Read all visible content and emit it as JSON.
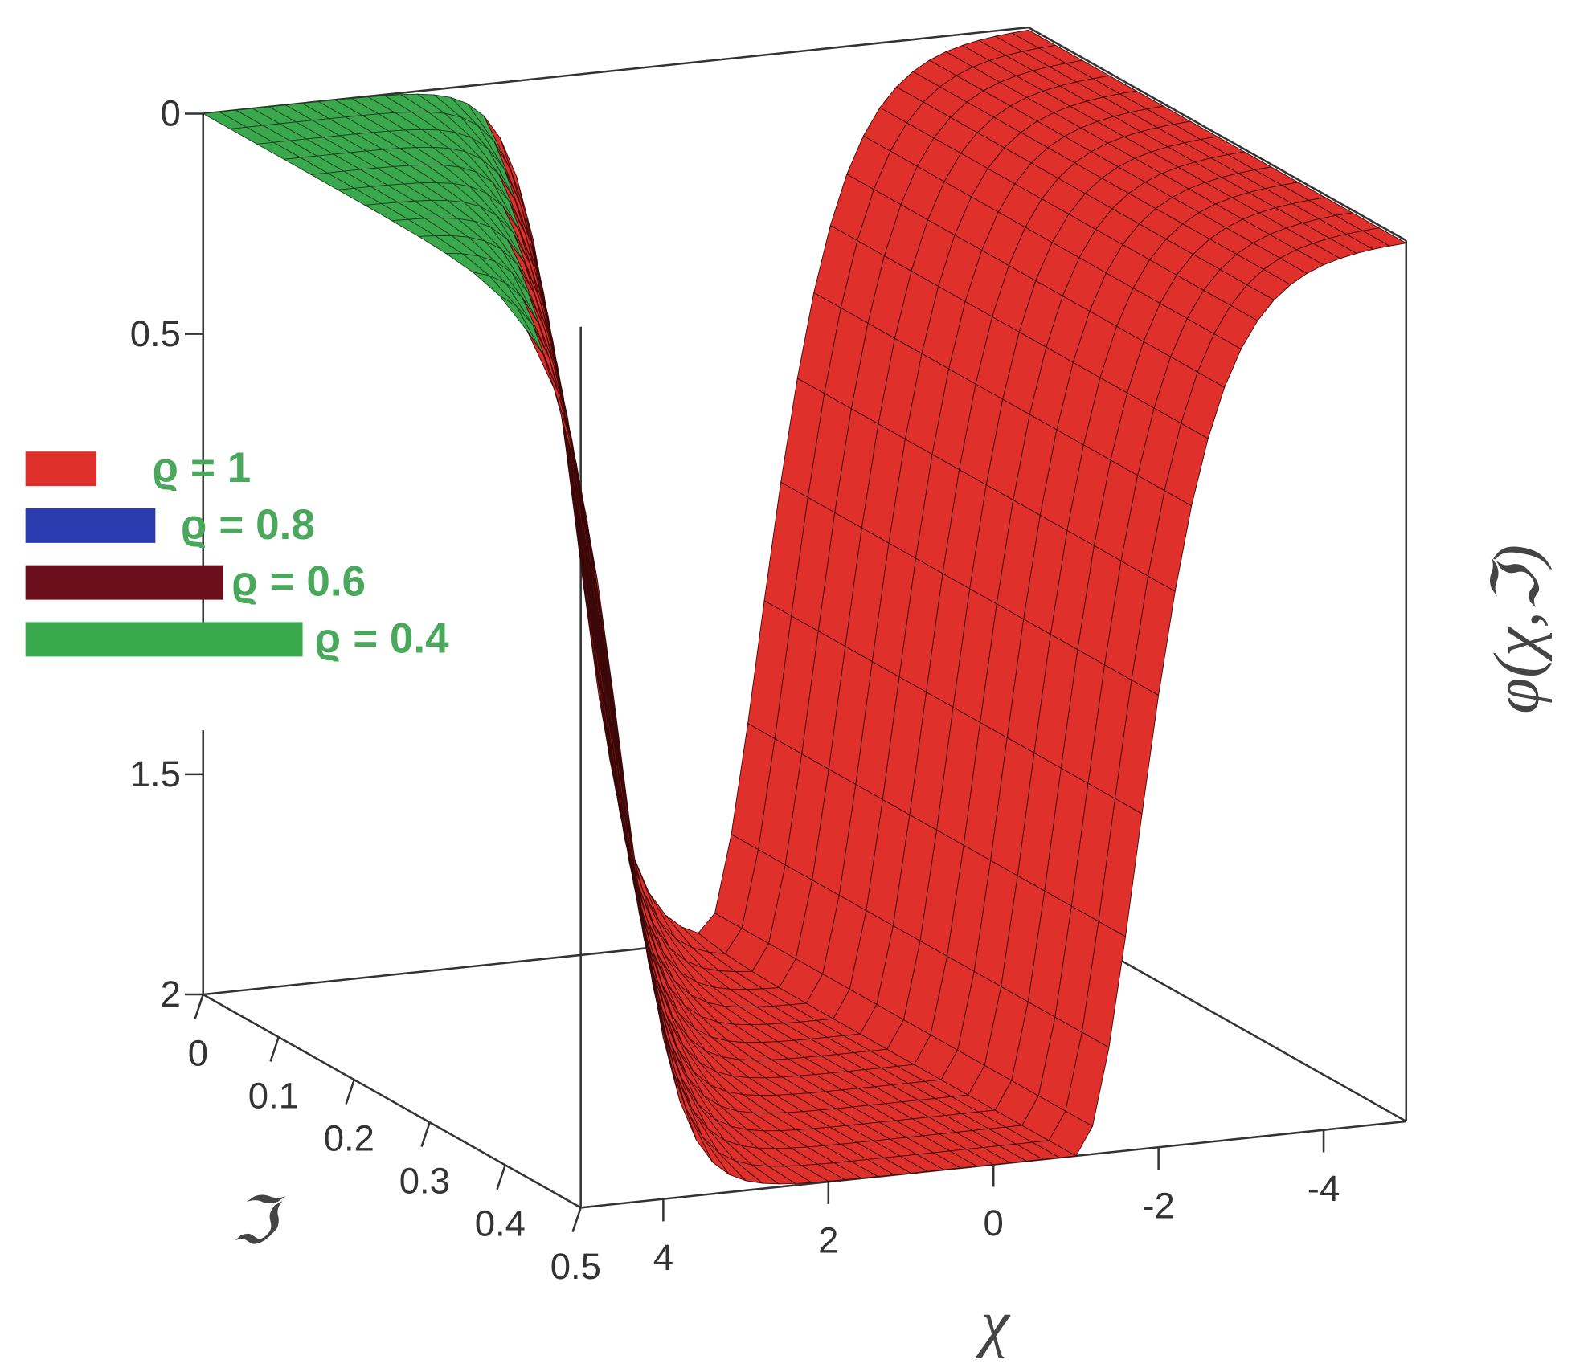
{
  "chart_data": {
    "type": "surface",
    "xlabel": "χ",
    "ylabel": "ℑ",
    "zlabel": "φ(χ,ℑ)",
    "xlim": [
      -5,
      5
    ],
    "xticks": [
      4,
      2,
      0,
      -2,
      -4
    ],
    "ylim": [
      0,
      0.5
    ],
    "yticks": [
      0,
      0.1,
      0.2,
      0.3,
      0.4,
      0.5
    ],
    "zlim": [
      0,
      2
    ],
    "zticks": [
      0,
      0.5,
      1.5,
      2
    ],
    "series": [
      {
        "name": "ϱ = 1",
        "color": "#e0302c"
      },
      {
        "name": "ϱ = 0.8",
        "color": "#2b3cb0"
      },
      {
        "name": "ϱ = 0.6",
        "color": "#6b0f1c"
      },
      {
        "name": "ϱ = 0.4",
        "color": "#3aa84c"
      }
    ]
  }
}
